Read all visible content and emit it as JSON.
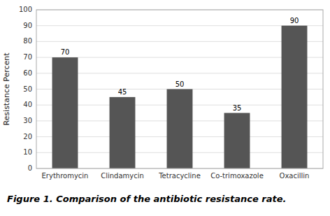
{
  "chart_data": {
    "type": "bar",
    "categories": [
      "Erythromycin",
      "Clindamycin",
      "Tetracycline",
      "Co-trimoxazole",
      "Oxacillin"
    ],
    "values": [
      70,
      45,
      50,
      35,
      90
    ],
    "color": "#555555",
    "ylabel": "Resistance Percent",
    "caption": "Figure 1. Comparison of the antibiotic resistance rate.",
    "ylim": [
      0,
      100
    ],
    "yticks": [
      0,
      10,
      20,
      30,
      40,
      50,
      60,
      70,
      80,
      90,
      100
    ],
    "grid": true,
    "data_labels": true
  }
}
